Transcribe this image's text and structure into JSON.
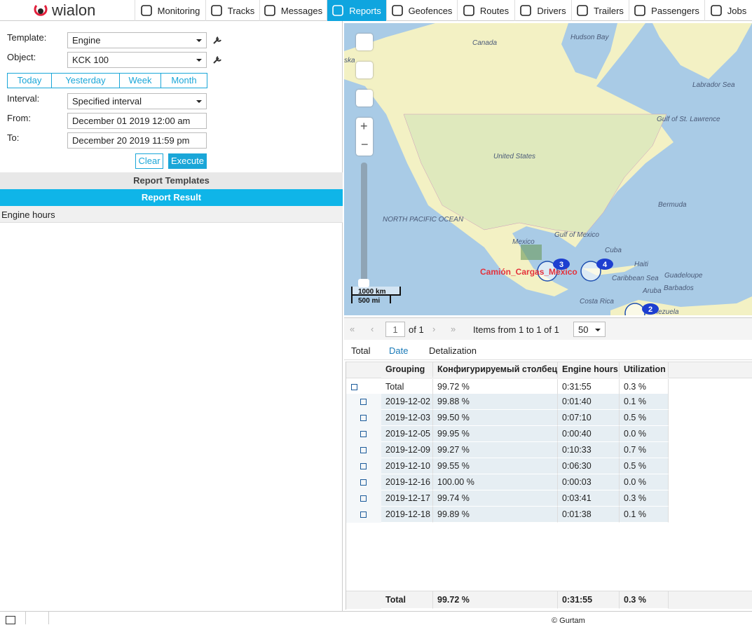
{
  "header": {
    "logo": "wialon",
    "tabs": [
      "Monitoring",
      "Tracks",
      "Messages",
      "Reports",
      "Geofences",
      "Routes",
      "Drivers",
      "Trailers",
      "Passengers",
      "Jobs"
    ],
    "active_tab": 3
  },
  "form": {
    "template_label": "Template:",
    "template": "Engine",
    "object_label": "Object:",
    "object": "KCK 100",
    "periods": [
      "Today",
      "Yesterday",
      "Week",
      "Month"
    ],
    "interval_label": "Interval:",
    "interval": "Specified interval",
    "from_label": "From:",
    "from": "December 01 2019 12:00 am",
    "to_label": "To:",
    "to": "December 20 2019 11:59 pm",
    "clear": "Clear",
    "execute": "Execute"
  },
  "sections": {
    "templates": "Report Templates",
    "result": "Report Result",
    "result_item": "Engine hours"
  },
  "map": {
    "labels": [
      "Hudson Bay",
      "Canada",
      "ska",
      "Labrador Sea",
      "Gulf of St. Lawrence",
      "United States",
      "Bermuda",
      "NORTH PACIFIC OCEAN",
      "Gulf of Mexico",
      "Mexico",
      "Cuba",
      "Haiti",
      "Caribbean Sea",
      "Guadeloupe",
      "Barbados",
      "Aruba",
      "Costa Rica",
      "enezuela"
    ],
    "unit": "Camión_Cargas_Mexico",
    "clusters": [
      3,
      4,
      2
    ],
    "scale": [
      "1000 km",
      "500 mi"
    ]
  },
  "pager": {
    "page": "1",
    "of": "of 1",
    "items": "Items from 1 to 1 of 1",
    "per_page": "50"
  },
  "table": {
    "tabs": [
      "Total",
      "Date",
      "Detalization"
    ],
    "active_tab": 1,
    "columns": [
      "Grouping",
      "Конфигурируемый столбец",
      "Engine hours",
      "Utilization"
    ],
    "rows": [
      [
        "Total",
        "99.72 %",
        "0:31:55",
        "0.3 %"
      ],
      [
        "2019-12-02",
        "99.88 %",
        "0:01:40",
        "0.1 %"
      ],
      [
        "2019-12-03",
        "99.50 %",
        "0:07:10",
        "0.5 %"
      ],
      [
        "2019-12-05",
        "99.95 %",
        "0:00:40",
        "0.0 %"
      ],
      [
        "2019-12-09",
        "99.27 %",
        "0:10:33",
        "0.7 %"
      ],
      [
        "2019-12-10",
        "99.55 %",
        "0:06:30",
        "0.5 %"
      ],
      [
        "2019-12-16",
        "100.00 %",
        "0:00:03",
        "0.0 %"
      ],
      [
        "2019-12-17",
        "99.74 %",
        "0:03:41",
        "0.3 %"
      ],
      [
        "2019-12-18",
        "99.89 %",
        "0:01:38",
        "0.1 %"
      ]
    ],
    "total": [
      "Total",
      "99.72 %",
      "0:31:55",
      "0.3 %"
    ]
  },
  "footer": {
    "copyright": "© Gurtam"
  }
}
